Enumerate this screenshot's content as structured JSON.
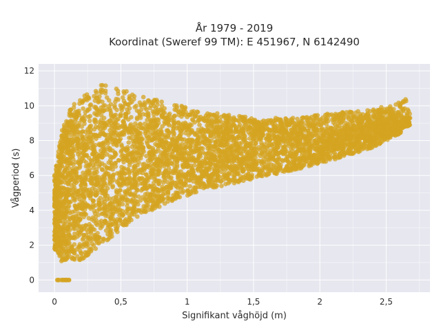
{
  "chart_data": {
    "type": "scatter",
    "title_line1": "År 1979 - 2019",
    "title_line2": "Koordinat (Sweref 99 TM): E 451967, N 6142490",
    "xlabel": "Signifikant våghöjd (m)",
    "ylabel": "Vågperiod (s)",
    "xlim": [
      -0.12,
      2.83
    ],
    "ylim": [
      -0.7,
      12.4
    ],
    "x_ticks": [
      {
        "value": 0,
        "label": "0"
      },
      {
        "value": 0.5,
        "label": "0,5"
      },
      {
        "value": 1,
        "label": "1"
      },
      {
        "value": 1.5,
        "label": "1,5"
      },
      {
        "value": 2,
        "label": "2"
      },
      {
        "value": 2.5,
        "label": "2,5"
      }
    ],
    "y_ticks": [
      {
        "value": 0,
        "label": "0"
      },
      {
        "value": 2,
        "label": "2"
      },
      {
        "value": 4,
        "label": "4"
      },
      {
        "value": 6,
        "label": "6"
      },
      {
        "value": 8,
        "label": "8"
      },
      {
        "value": 10,
        "label": "10"
      },
      {
        "value": 12,
        "label": "12"
      }
    ],
    "grid": true,
    "marker_color": "#d4a421",
    "background_color": "#e6e7ef",
    "point_opacity": 0.75,
    "envelope": {
      "upper": [
        [
          0.0,
          6.0
        ],
        [
          0.05,
          8.4
        ],
        [
          0.1,
          9.6
        ],
        [
          0.2,
          10.7
        ],
        [
          0.35,
          11.3
        ],
        [
          0.6,
          10.7
        ],
        [
          0.9,
          10.1
        ],
        [
          1.2,
          9.6
        ],
        [
          1.5,
          9.3
        ],
        [
          1.8,
          9.3
        ],
        [
          2.1,
          9.6
        ],
        [
          2.4,
          9.8
        ],
        [
          2.6,
          10.2
        ],
        [
          2.68,
          10.5
        ]
      ],
      "lower": [
        [
          0.0,
          1.8
        ],
        [
          0.05,
          1.0
        ],
        [
          0.2,
          1.1
        ],
        [
          0.35,
          2.0
        ],
        [
          0.6,
          3.5
        ],
        [
          0.9,
          4.6
        ],
        [
          1.2,
          5.3
        ],
        [
          1.5,
          5.8
        ],
        [
          1.8,
          6.3
        ],
        [
          2.1,
          6.9
        ],
        [
          2.4,
          7.6
        ],
        [
          2.6,
          8.4
        ],
        [
          2.68,
          8.9
        ]
      ],
      "dense_upper": [
        [
          0.0,
          4.0
        ],
        [
          0.05,
          6.8
        ],
        [
          0.15,
          8.0
        ],
        [
          0.4,
          8.3
        ],
        [
          0.8,
          8.5
        ],
        [
          1.2,
          8.5
        ],
        [
          1.6,
          8.6
        ],
        [
          2.0,
          8.6
        ],
        [
          2.3,
          8.8
        ],
        [
          2.55,
          9.3
        ]
      ]
    },
    "zero_period_points": {
      "x_range": [
        0.02,
        0.12
      ],
      "y": 0
    }
  }
}
